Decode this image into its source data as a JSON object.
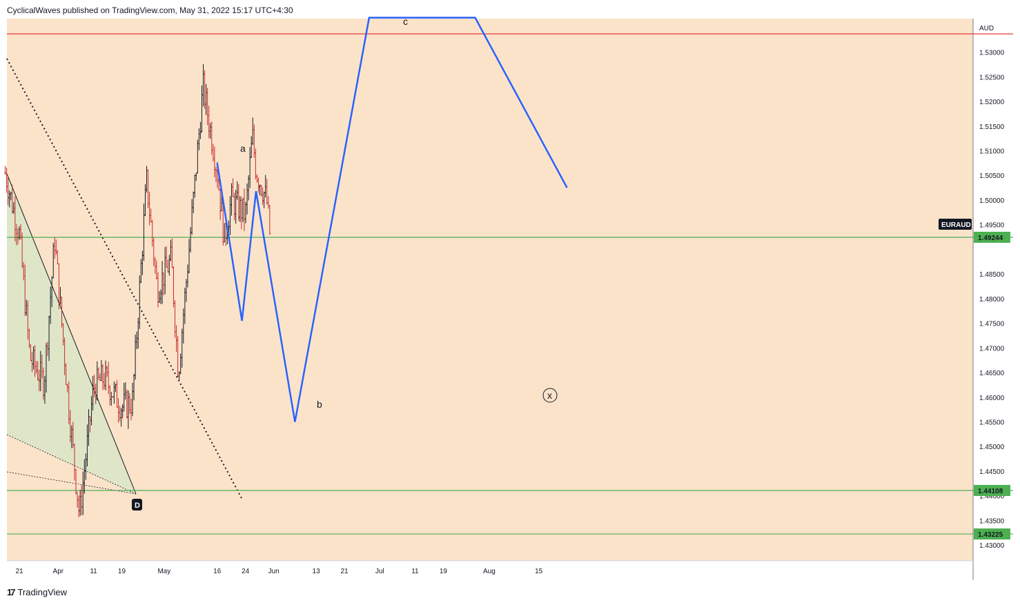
{
  "header": {
    "publish_text": "CyclicalWaves published on TradingView.com, May 31, 2022 15:17 UTC+4:30"
  },
  "footer": {
    "brand": "TradingView",
    "logo_glyph": "17"
  },
  "colors": {
    "background": "#fbe3ca",
    "candle": "#c62828",
    "green_line": "#4caf50",
    "red_line": "#e53935",
    "projection": "#2962ff",
    "triangle_fill": "#dbe5c8"
  },
  "chart_data": {
    "type": "line",
    "symbol": "EURAUD",
    "currency": "AUD",
    "last_price": "1.49244",
    "y_range": [
      1.4268,
      1.5368
    ],
    "y_ticks": [
      "1.53000",
      "1.52500",
      "1.52000",
      "1.51500",
      "1.51000",
      "1.50500",
      "1.50000",
      "1.49500",
      "1.48500",
      "1.48000",
      "1.47500",
      "1.47000",
      "1.46500",
      "1.46000",
      "1.45500",
      "1.45000",
      "1.44500",
      "1.44000",
      "1.43500",
      "1.43000"
    ],
    "x_ticks": [
      "21",
      "Apr",
      "11",
      "19",
      "May",
      "16",
      "24",
      "Jun",
      "13",
      "21",
      "Jul",
      "11",
      "19",
      "Aug",
      "15"
    ],
    "horizontal_levels": [
      {
        "price": 1.5337,
        "label": "",
        "color": "#e53935"
      },
      {
        "price": 1.49244,
        "label": "1.49244",
        "color": "#4caf50"
      },
      {
        "price": 1.44108,
        "label": "1.44108",
        "color": "#4caf50"
      },
      {
        "price": 1.43225,
        "label": "1.43225",
        "color": "#4caf50"
      }
    ],
    "series": [
      {
        "x": [
          "2022-03-17",
          "2022-03-21",
          "2022-03-24",
          "2022-03-28",
          "2022-03-31",
          "2022-04-04",
          "2022-04-07",
          "2022-04-11",
          "2022-04-14",
          "2022-04-19",
          "2022-04-22",
          "2022-04-26",
          "2022-04-29",
          "2022-05-03",
          "2022-05-05",
          "2022-05-09",
          "2022-05-12",
          "2022-05-16",
          "2022-05-18",
          "2022-05-20",
          "2022-05-24",
          "2022-05-26",
          "2022-05-27",
          "2022-05-30",
          "2022-05-31"
        ],
        "y": [
          1.5055,
          1.493,
          1.468,
          1.463,
          1.492,
          1.458,
          1.436,
          1.462,
          1.464,
          1.458,
          1.459,
          1.504,
          1.482,
          1.488,
          1.465,
          1.498,
          1.523,
          1.506,
          1.492,
          1.5,
          1.497,
          1.513,
          1.506,
          1.5,
          1.4924
        ]
      }
    ],
    "projection_path": {
      "x": [
        "2022-05-16",
        "2022-05-23",
        "2022-05-27",
        "2022-06-07",
        "2022-06-28",
        "2022-07-28",
        "2022-08-23"
      ],
      "y": [
        1.5075,
        1.4755,
        1.5018,
        1.455,
        1.537,
        1.537,
        1.5025
      ]
    },
    "wave_labels": [
      "a",
      "b",
      "c",
      "x",
      "D"
    ],
    "grid": false,
    "legend": "none"
  }
}
